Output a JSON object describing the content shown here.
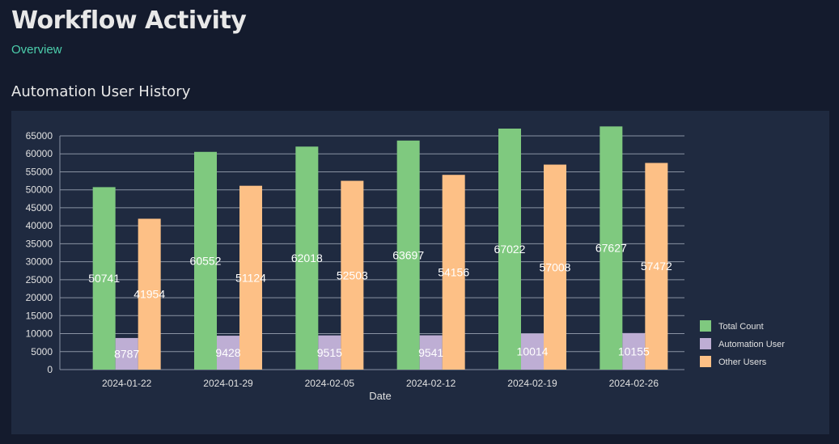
{
  "header": {
    "title": "Workflow Activity",
    "subtitle": "Overview"
  },
  "section": {
    "title": "Automation User History"
  },
  "colors": {
    "background": "#141b2d",
    "panel": "#1f2a40",
    "accent": "#4cceac",
    "total": "#7fc97f",
    "automation": "#beaed4",
    "other": "#fdc086"
  },
  "chart_data": {
    "type": "bar",
    "xlabel": "Date",
    "ylabel": "",
    "ylim": [
      0,
      65000
    ],
    "yticks": [
      0,
      5000,
      10000,
      15000,
      20000,
      25000,
      30000,
      35000,
      40000,
      45000,
      50000,
      55000,
      60000,
      65000
    ],
    "grid": true,
    "legend_position": "bottom-right",
    "categories": [
      "2024-01-22",
      "2024-01-29",
      "2024-02-05",
      "2024-02-12",
      "2024-02-19",
      "2024-02-26"
    ],
    "series": [
      {
        "name": "Total Count",
        "color": "#7fc97f",
        "values": [
          50741,
          60552,
          62018,
          63697,
          67022,
          67627
        ]
      },
      {
        "name": "Automation User",
        "color": "#beaed4",
        "values": [
          8787,
          9428,
          9515,
          9541,
          10014,
          10155
        ]
      },
      {
        "name": "Other Users",
        "color": "#fdc086",
        "values": [
          41954,
          51124,
          52503,
          54156,
          57008,
          57472
        ]
      }
    ]
  }
}
